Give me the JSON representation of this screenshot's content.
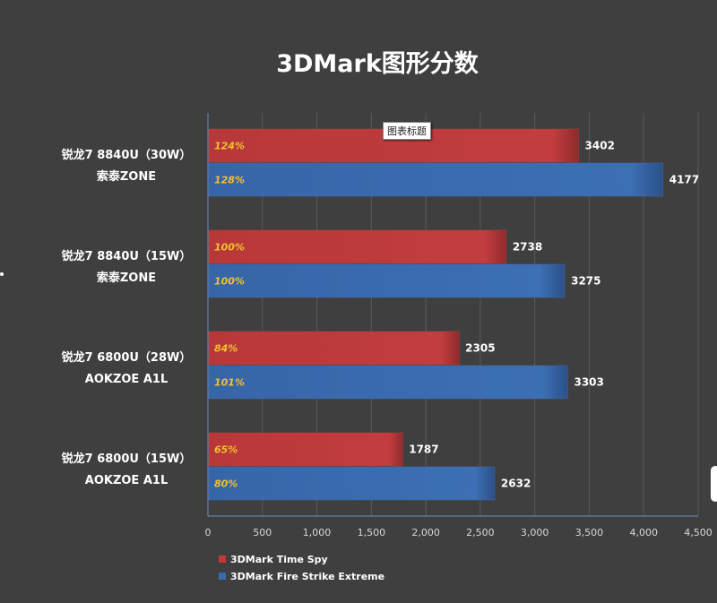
{
  "chart_data": {
    "type": "bar",
    "orientation": "horizontal",
    "title": "3DMark图形分数",
    "categories": [
      [
        "锐龙7 8840U（30W）",
        "索泰ZONE"
      ],
      [
        "锐龙7 8840U（15W）",
        "索泰ZONE"
      ],
      [
        "锐龙7 6800U（28W）",
        "AOKZOE A1L"
      ],
      [
        "锐龙7 6800U（15W）",
        "AOKZOE A1L"
      ]
    ],
    "series": [
      {
        "name": "3DMark Time Spy",
        "color": "#c0393b",
        "values": [
          3402,
          2738,
          2305,
          1787
        ],
        "percent_labels": [
          "124%",
          "100%",
          "84%",
          "65%"
        ]
      },
      {
        "name": "3DMark Fire Strike Extreme",
        "color": "#3a6aae",
        "values": [
          4177,
          3275,
          3303,
          2632
        ],
        "percent_labels": [
          "128%",
          "100%",
          "101%",
          "80%"
        ]
      }
    ],
    "xlim": [
      0,
      4500
    ],
    "xticks": [
      "0",
      "500",
      "1,000",
      "1,500",
      "2,000",
      "2,500",
      "3,000",
      "3,500",
      "4,000",
      "4,500"
    ],
    "grid": true,
    "legend_position": "bottom-left"
  },
  "tooltip": "图表标题",
  "colors": {
    "background": "#3f3f3f",
    "grid": "#5a5a5a",
    "axis": "#6a8fbf",
    "percent_label": "#f2c12e"
  }
}
